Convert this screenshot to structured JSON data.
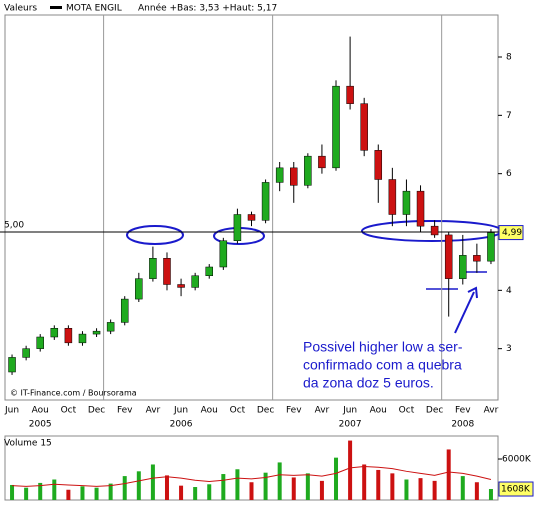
{
  "chart_data": [
    {
      "type": "candlestick",
      "legend": {
        "label": "Valeurs",
        "name": "MOTA ENGIL",
        "range_text": "Année +Bas: 3,53 +Haut: 5,17"
      },
      "categories": [
        "Jun",
        null,
        "Aou",
        null,
        "Oct",
        null,
        "Dec",
        null,
        "Fev",
        null,
        "Avr",
        null,
        "Jun",
        null,
        "Aou",
        null,
        "Oct",
        null,
        "Dec",
        null,
        "Fev",
        null,
        "Avr",
        null,
        "Jun",
        null,
        "Aou",
        null,
        "Oct",
        null,
        "Dec",
        null,
        "Fev",
        null,
        "Avr"
      ],
      "year_labels": [
        "2005",
        "2006",
        "2007",
        "2008"
      ],
      "open": [
        2.6,
        2.85,
        3.0,
        3.2,
        3.35,
        3.1,
        3.25,
        3.3,
        3.45,
        3.85,
        4.2,
        4.55,
        4.1,
        4.05,
        4.25,
        4.4,
        4.85,
        5.3,
        5.2,
        5.85,
        6.1,
        5.8,
        6.3,
        6.1,
        7.5,
        7.2,
        6.4,
        5.9,
        5.3,
        5.7,
        5.1,
        4.95,
        4.2,
        4.6,
        4.5
      ],
      "high": [
        2.9,
        3.05,
        3.25,
        3.4,
        3.4,
        3.3,
        3.35,
        3.5,
        3.9,
        4.3,
        4.75,
        4.65,
        4.2,
        4.3,
        4.45,
        4.9,
        5.4,
        5.35,
        5.9,
        6.2,
        6.2,
        6.35,
        6.5,
        7.6,
        8.35,
        7.3,
        6.5,
        6.1,
        5.9,
        5.8,
        5.2,
        5.0,
        4.95,
        4.8,
        5.05
      ],
      "low": [
        2.55,
        2.8,
        2.95,
        3.15,
        3.05,
        3.05,
        3.2,
        3.25,
        3.4,
        3.8,
        4.15,
        4.0,
        3.9,
        4.0,
        4.2,
        4.35,
        4.8,
        5.1,
        5.15,
        5.7,
        5.5,
        5.75,
        6.0,
        6.05,
        7.1,
        6.3,
        5.5,
        5.1,
        5.1,
        5.0,
        4.9,
        3.55,
        4.1,
        4.3,
        4.45
      ],
      "close": [
        2.85,
        3.0,
        3.2,
        3.35,
        3.1,
        3.25,
        3.3,
        3.45,
        3.85,
        4.2,
        4.55,
        4.1,
        4.05,
        4.25,
        4.4,
        4.85,
        5.3,
        5.2,
        5.85,
        6.1,
        5.8,
        6.3,
        6.1,
        7.5,
        7.2,
        6.4,
        5.9,
        5.3,
        5.7,
        5.1,
        4.95,
        4.2,
        4.6,
        4.5,
        4.99
      ],
      "up_color": "#1faa1f",
      "down_color": "#cc1111",
      "ylim": [
        2.12,
        8.72
      ],
      "yticks": [
        3,
        4,
        5,
        6,
        7,
        8
      ],
      "reference_line": {
        "value": 5,
        "label": "5,00"
      },
      "last_price": {
        "value": 4.99,
        "label": "4,99"
      },
      "source": "© IT-Finance.com / Boursorama",
      "annotation": [
        "Possivel higher low a ser-",
        "confirmado com a quebra",
        "da zona doz 5 euros."
      ]
    },
    {
      "type": "volume",
      "title": "Volume 15",
      "values": [
        2200,
        1800,
        2500,
        3000,
        1500,
        2000,
        1800,
        2400,
        3500,
        4200,
        5200,
        3600,
        2100,
        1900,
        2300,
        3800,
        4500,
        2600,
        4000,
        5500,
        3300,
        3900,
        2800,
        6200,
        8700,
        5200,
        4400,
        3900,
        3000,
        3200,
        2800,
        7400,
        3500,
        2600,
        1608
      ],
      "average": {
        "color": "#cc1111",
        "values": [
          2100,
          2000,
          2100,
          2300,
          2200,
          2100,
          2000,
          2100,
          2400,
          2800,
          3200,
          3400,
          3200,
          2900,
          2700,
          2900,
          3200,
          3100,
          3300,
          3700,
          3600,
          3700,
          3500,
          3900,
          4700,
          4900,
          4800,
          4600,
          4200,
          3900,
          3600,
          4100,
          3900,
          3500,
          3000
        ]
      },
      "ylim": [
        0,
        9370
      ],
      "yticks": [
        {
          "value": 6000,
          "label": "6000K"
        }
      ],
      "last_volume": {
        "value": 1608,
        "label": "1608K"
      }
    }
  ]
}
